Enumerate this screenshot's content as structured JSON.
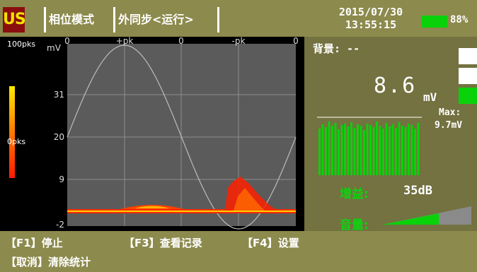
{
  "header": {
    "logo_text": "US",
    "mode": "相位模式",
    "sync": "外同步<运行>",
    "date": "2015/07/30",
    "time": "13:55:15",
    "battery": "88%",
    "battery_level": 0.88
  },
  "plot": {
    "scale_top": "100pks",
    "scale_bottom": "0pks",
    "unit": "mV",
    "y_ticks": [
      "31",
      "20",
      "9",
      "-2"
    ],
    "phase_labels": [
      "0",
      "+pk",
      "0",
      "-pk",
      "0"
    ]
  },
  "panel": {
    "background_label": "背景: --",
    "value": "8.6",
    "unit": "mV",
    "max_label": "Max:",
    "max_value": "9.7mV",
    "gain_label": "增益:",
    "gain_value": "35dB",
    "volume_label": "音量:"
  },
  "function_keys": [
    {
      "key": "【F1】",
      "label": "停止"
    },
    {
      "key": "【F3】",
      "label": "查看记录"
    },
    {
      "key": "【F4】",
      "label": "设置"
    },
    {
      "key": "【取消】",
      "label": "清除统计"
    }
  ],
  "colors": {
    "bar_bg": "#8c8a4d",
    "panel_bg": "#737240",
    "accent_green": "#0ad20a",
    "plot_bg": "#5b5b5b",
    "signal": "#ff3a00"
  }
}
